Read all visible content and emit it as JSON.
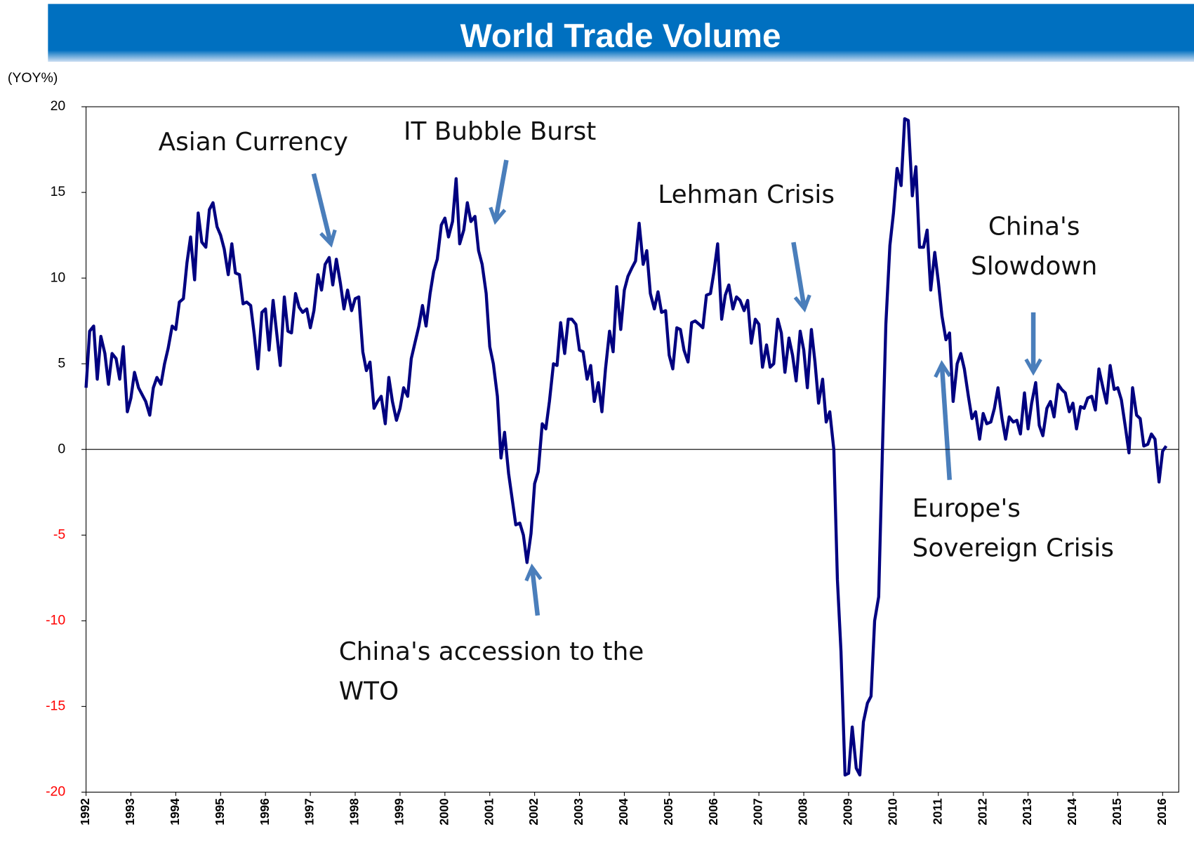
{
  "chart_data": {
    "type": "line",
    "title": "World Trade Volume",
    "ylabel": "(YOY%)",
    "annotations": [
      [
        "Asian Currency"
      ],
      [
        "IT Bubble Burst"
      ],
      [
        "Lehman Crisis"
      ],
      [
        "China's",
        "Slowdown"
      ],
      [
        "China's accession to the",
        "WTO"
      ],
      [
        "Europe's",
        "Sovereign Crisis"
      ]
    ],
    "xlim": [
      1992,
      2016.36
    ],
    "xticks": [
      1992,
      1993,
      1994,
      1995,
      1996,
      1997,
      1998,
      1999,
      2000,
      2001,
      2002,
      2003,
      2004,
      2005,
      2006,
      2007,
      2008,
      2009,
      2010,
      2011,
      2012,
      2013,
      2014,
      2015,
      2016
    ],
    "ylim": [
      -20,
      20
    ],
    "yticks": [
      -20,
      -15,
      -10,
      -5,
      0,
      5,
      10,
      15,
      20
    ],
    "negative_tick_color": "#ff0000",
    "grid": false,
    "x": [
      1992,
      1992.08,
      1992.17,
      1992.25,
      1992.33,
      1992.42,
      1992.5,
      1992.58,
      1992.67,
      1992.75,
      1992.83,
      1992.92,
      1993,
      1993.08,
      1993.17,
      1993.25,
      1993.33,
      1993.42,
      1993.5,
      1993.58,
      1993.67,
      1993.75,
      1993.83,
      1993.92,
      1994,
      1994.08,
      1994.17,
      1994.25,
      1994.33,
      1994.42,
      1994.5,
      1994.58,
      1994.67,
      1994.75,
      1994.83,
      1994.92,
      1995,
      1995.08,
      1995.17,
      1995.25,
      1995.33,
      1995.42,
      1995.5,
      1995.58,
      1995.67,
      1995.75,
      1995.83,
      1995.92,
      1996,
      1996.08,
      1996.17,
      1996.25,
      1996.33,
      1996.42,
      1996.5,
      1996.58,
      1996.67,
      1996.75,
      1996.83,
      1996.92,
      1997,
      1997.08,
      1997.17,
      1997.25,
      1997.33,
      1997.42,
      1997.5,
      1997.58,
      1997.67,
      1997.75,
      1997.83,
      1997.92,
      1998,
      1998.08,
      1998.17,
      1998.25,
      1998.33,
      1998.42,
      1998.5,
      1998.58,
      1998.67,
      1998.75,
      1998.83,
      1998.92,
      1999,
      1999.08,
      1999.17,
      1999.25,
      1999.33,
      1999.42,
      1999.5,
      1999.58,
      1999.67,
      1999.75,
      1999.83,
      1999.92,
      2000,
      2000.08,
      2000.17,
      2000.25,
      2000.33,
      2000.42,
      2000.5,
      2000.58,
      2000.67,
      2000.75,
      2000.83,
      2000.92,
      2001,
      2001.08,
      2001.17,
      2001.25,
      2001.33,
      2001.42,
      2001.5,
      2001.58,
      2001.67,
      2001.75,
      2001.83,
      2001.92,
      2002,
      2002.08,
      2002.17,
      2002.25,
      2002.33,
      2002.42,
      2002.5,
      2002.58,
      2002.67,
      2002.75,
      2002.83,
      2002.92,
      2003,
      2003.08,
      2003.17,
      2003.25,
      2003.33,
      2003.42,
      2003.5,
      2003.58,
      2003.67,
      2003.75,
      2003.83,
      2003.92,
      2004,
      2004.08,
      2004.17,
      2004.25,
      2004.33,
      2004.42,
      2004.5,
      2004.58,
      2004.67,
      2004.75,
      2004.83,
      2004.92,
      2005,
      2005.08,
      2005.17,
      2005.25,
      2005.33,
      2005.42,
      2005.5,
      2005.58,
      2005.67,
      2005.75,
      2005.83,
      2005.92,
      2006,
      2006.08,
      2006.17,
      2006.25,
      2006.33,
      2006.42,
      2006.5,
      2006.58,
      2006.67,
      2006.75,
      2006.83,
      2006.92,
      2007,
      2007.08,
      2007.17,
      2007.25,
      2007.33,
      2007.42,
      2007.5,
      2007.58,
      2007.67,
      2007.75,
      2007.83,
      2007.92,
      2008,
      2008.08,
      2008.17,
      2008.25,
      2008.33,
      2008.42,
      2008.5,
      2008.58,
      2008.67,
      2008.75,
      2008.83,
      2008.92,
      2009,
      2009.08,
      2009.17,
      2009.25,
      2009.33,
      2009.42,
      2009.5,
      2009.58,
      2009.67,
      2009.75,
      2009.83,
      2009.92,
      2010,
      2010.08,
      2010.17,
      2010.25,
      2010.33,
      2010.42,
      2010.5,
      2010.58,
      2010.67,
      2010.75,
      2010.83,
      2010.92,
      2011,
      2011.08,
      2011.17,
      2011.25,
      2011.33,
      2011.42,
      2011.5,
      2011.58,
      2011.67,
      2011.75,
      2011.83,
      2011.92,
      2012,
      2012.08,
      2012.17,
      2012.25,
      2012.33,
      2012.42,
      2012.5,
      2012.58,
      2012.67,
      2012.75,
      2012.83,
      2012.92,
      2013,
      2013.08,
      2013.17,
      2013.25,
      2013.33,
      2013.42,
      2013.5,
      2013.58,
      2013.67,
      2013.75,
      2013.83,
      2013.92,
      2014,
      2014.08,
      2014.17,
      2014.25,
      2014.33,
      2014.42,
      2014.5,
      2014.58,
      2014.67,
      2014.75,
      2014.83,
      2014.92,
      2015,
      2015.08,
      2015.17,
      2015.25,
      2015.33,
      2015.42,
      2015.5,
      2015.58,
      2015.67,
      2015.75,
      2015.83,
      2015.92,
      2016,
      2016.08
    ],
    "series": [
      {
        "color": "#000080",
        "values": [
          3.6,
          6.9,
          7.2,
          4.1,
          6.6,
          5.6,
          3.8,
          5.6,
          5.3,
          4.1,
          6.0,
          2.2,
          3.0,
          4.5,
          3.6,
          3.2,
          2.8,
          2.0,
          3.6,
          4.2,
          3.8,
          5.0,
          5.9,
          7.2,
          7.0,
          8.6,
          8.8,
          10.9,
          12.4,
          9.9,
          13.8,
          12.1,
          11.8,
          14.0,
          14.4,
          13.0,
          12.5,
          11.7,
          10.2,
          12.0,
          10.3,
          10.2,
          8.5,
          8.6,
          8.4,
          6.7,
          4.7,
          8.0,
          8.2,
          5.8,
          8.7,
          6.8,
          4.9,
          8.9,
          6.9,
          6.8,
          9.1,
          8.3,
          8.0,
          8.2,
          7.1,
          8.1,
          10.2,
          9.3,
          10.8,
          11.2,
          9.6,
          11.1,
          9.7,
          8.2,
          9.3,
          8.1,
          8.8,
          8.9,
          5.7,
          4.6,
          5.1,
          2.4,
          2.8,
          3.1,
          1.5,
          4.2,
          2.8,
          1.7,
          2.4,
          3.6,
          3.1,
          5.3,
          6.2,
          7.2,
          8.4,
          7.2,
          9.1,
          10.4,
          11.1,
          13.1,
          13.5,
          12.4,
          13.3,
          15.8,
          12.0,
          12.8,
          14.4,
          13.3,
          13.6,
          11.6,
          10.8,
          9.1,
          6.0,
          5.0,
          3.1,
          -0.5,
          1.0,
          -1.4,
          -2.9,
          -4.4,
          -4.3,
          -5.0,
          -6.6,
          -4.9,
          -2.0,
          -1.3,
          1.5,
          1.2,
          2.8,
          5.0,
          4.9,
          7.4,
          5.6,
          7.6,
          7.6,
          7.3,
          5.8,
          5.7,
          4.1,
          4.9,
          2.8,
          3.9,
          2.2,
          4.7,
          6.9,
          5.7,
          9.5,
          7.0,
          9.3,
          10.1,
          10.6,
          11.0,
          13.2,
          10.8,
          11.6,
          9.1,
          8.2,
          9.2,
          8.0,
          8.1,
          5.5,
          4.7,
          7.1,
          7.0,
          5.8,
          5.1,
          7.4,
          7.5,
          7.3,
          7.1,
          9.0,
          9.1,
          10.4,
          12.0,
          7.6,
          9.0,
          9.6,
          8.2,
          8.9,
          8.7,
          8.1,
          8.7,
          6.2,
          7.6,
          7.3,
          4.8,
          6.1,
          4.8,
          5.0,
          7.6,
          6.8,
          4.5,
          6.5,
          5.5,
          4.0,
          6.9,
          5.8,
          3.6,
          7.0,
          5.1,
          2.7,
          4.1,
          1.6,
          2.2,
          0.0,
          -7.6,
          -11.8,
          -19.0,
          -18.9,
          -16.2,
          -18.6,
          -19.0,
          -15.9,
          -14.8,
          -14.4,
          -10.0,
          -8.6,
          -0.4,
          7.3,
          11.9,
          13.8,
          16.4,
          15.4,
          19.3,
          19.2,
          14.8,
          16.5,
          11.8,
          11.8,
          12.8,
          9.3,
          11.5,
          9.8,
          7.8,
          6.4,
          6.8,
          2.8,
          5.0,
          5.6,
          4.7,
          3.1,
          1.8,
          2.2,
          0.6,
          2.1,
          1.5,
          1.6,
          2.4,
          3.6,
          1.8,
          0.6,
          1.9,
          1.6,
          1.7,
          0.9,
          3.3,
          1.2,
          2.7,
          3.9,
          1.4,
          0.8,
          2.4,
          2.8,
          1.9,
          3.8,
          3.5,
          3.3,
          2.2,
          2.7,
          1.2,
          2.5,
          2.4,
          3.0,
          3.1,
          2.3,
          4.7,
          3.6,
          2.7,
          4.9,
          3.5,
          3.6,
          2.9,
          1.3,
          -0.2,
          3.6,
          2.0,
          1.8,
          0.2,
          0.3,
          0.9,
          0.6,
          -1.9,
          -0.1,
          0.2
        ]
      }
    ]
  }
}
